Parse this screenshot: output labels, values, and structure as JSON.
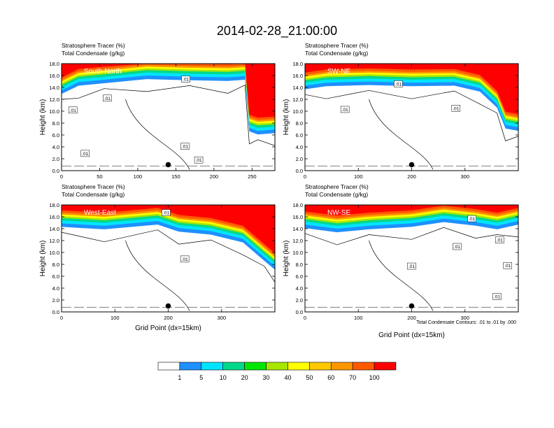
{
  "figure": {
    "title": "2014-02-28_21:00:00",
    "footnote": "Total Condensate Contours: .01 to .01 by .000"
  },
  "colorbar": {
    "labels": [
      "1",
      "5",
      "10",
      "20",
      "30",
      "40",
      "50",
      "60",
      "70",
      "100"
    ],
    "colors": [
      "#ffffff",
      "#1e90ff",
      "#00e5ff",
      "#00d88a",
      "#00e600",
      "#a8e600",
      "#ffff00",
      "#ffc800",
      "#ff9600",
      "#ff5a00",
      "#ff0000"
    ]
  },
  "chart_data": [
    {
      "type": "contour",
      "panel": "South-North",
      "left_string": "Stratosphere Tracer   (%)",
      "left_string2": "Total Condensate   (g/kg)",
      "ylabel": "Height (km)",
      "xlabel": "",
      "xlim": [
        0,
        280
      ],
      "ylim": [
        0,
        18
      ],
      "xticks": [
        "0",
        "50",
        "100",
        "150",
        "200",
        "250"
      ],
      "xtick_values": [
        0,
        50,
        100,
        150,
        200,
        250
      ],
      "yticks": [
        "0.0",
        "2.0",
        "4.0",
        "6.0",
        "8.0",
        "10.0",
        "12.0",
        "14.0",
        "16.0",
        "18.0"
      ],
      "marker": {
        "x": 140,
        "y": 1.0
      },
      "contour_labels": [
        {
          "text": ".01",
          "x": 163,
          "y": 15.4
        },
        {
          "text": ".01",
          "x": 60,
          "y": 12.2
        },
        {
          "text": ".01",
          "x": 15,
          "y": 10.2
        },
        {
          "text": ".01",
          "x": 162,
          "y": 4.1
        },
        {
          "text": ".01",
          "x": 31,
          "y": 2.9
        },
        {
          "text": ".01",
          "x": 180,
          "y": 1.8
        }
      ]
    },
    {
      "type": "contour",
      "panel": "SW-NE",
      "left_string": "Stratosphere Tracer   (%)",
      "left_string2": "Total Condensate   (g/kg)",
      "ylabel": "Height (km)",
      "xlabel": "",
      "xlim": [
        0,
        400
      ],
      "ylim": [
        0,
        18
      ],
      "xticks": [
        "0",
        "100",
        "200",
        "300"
      ],
      "xtick_values": [
        0,
        100,
        200,
        300
      ],
      "yticks": [
        "0.0",
        "2.0",
        "4.0",
        "6.0",
        "8.0",
        "10.0",
        "12.0",
        "14.0",
        "16.0",
        "18.0"
      ],
      "marker": {
        "x": 200,
        "y": 1.0
      },
      "contour_labels": [
        {
          "text": ".01",
          "x": 175,
          "y": 14.6
        },
        {
          "text": ".01",
          "x": 75,
          "y": 10.3
        },
        {
          "text": ".01",
          "x": 283,
          "y": 10.5
        }
      ]
    },
    {
      "type": "contour",
      "panel": "West-East",
      "left_string": "Stratosphere Tracer   (%)",
      "left_string2": "Total Condensate   (g/kg)",
      "ylabel": "Height (km)",
      "xlabel": "Grid Point (dx=15km)",
      "xlim": [
        0,
        400
      ],
      "ylim": [
        0,
        18
      ],
      "xticks": [
        "0",
        "100",
        "200",
        "300"
      ],
      "xtick_values": [
        0,
        100,
        200,
        300
      ],
      "yticks": [
        "0.0",
        "2.0",
        "4.0",
        "6.0",
        "8.0",
        "10.0",
        "12.0",
        "14.0",
        "16.0",
        "18.0"
      ],
      "marker": {
        "x": 200,
        "y": 1.0
      },
      "contour_labels": [
        {
          "text": ".01",
          "x": 196,
          "y": 16.7
        },
        {
          "text": ".01",
          "x": 231,
          "y": 8.9
        }
      ]
    },
    {
      "type": "contour",
      "panel": "NW-SE",
      "left_string": "Stratosphere Tracer   (%)",
      "left_string2": "Total Condensate   (g/kg)",
      "ylabel": "Height (km)",
      "xlabel": "Grid Point (dx=15km)",
      "xlim": [
        0,
        400
      ],
      "ylim": [
        0,
        18
      ],
      "xticks": [
        "0",
        "100",
        "200",
        "300"
      ],
      "xtick_values": [
        0,
        100,
        200,
        300
      ],
      "yticks": [
        "0.0",
        "2.0",
        "4.0",
        "6.0",
        "8.0",
        "10.0",
        "12.0",
        "14.0",
        "16.0",
        "18.0"
      ],
      "marker": {
        "x": 200,
        "y": 1.0
      },
      "contour_labels": [
        {
          "text": ".01",
          "x": 313,
          "y": 15.7
        },
        {
          "text": ".01",
          "x": 285,
          "y": 11.0
        },
        {
          "text": ".01",
          "x": 365,
          "y": 12.1
        },
        {
          "text": ".01",
          "x": 200,
          "y": 7.7
        },
        {
          "text": ".01",
          "x": 380,
          "y": 7.8
        },
        {
          "text": ".01",
          "x": 360,
          "y": 2.6
        }
      ]
    }
  ]
}
